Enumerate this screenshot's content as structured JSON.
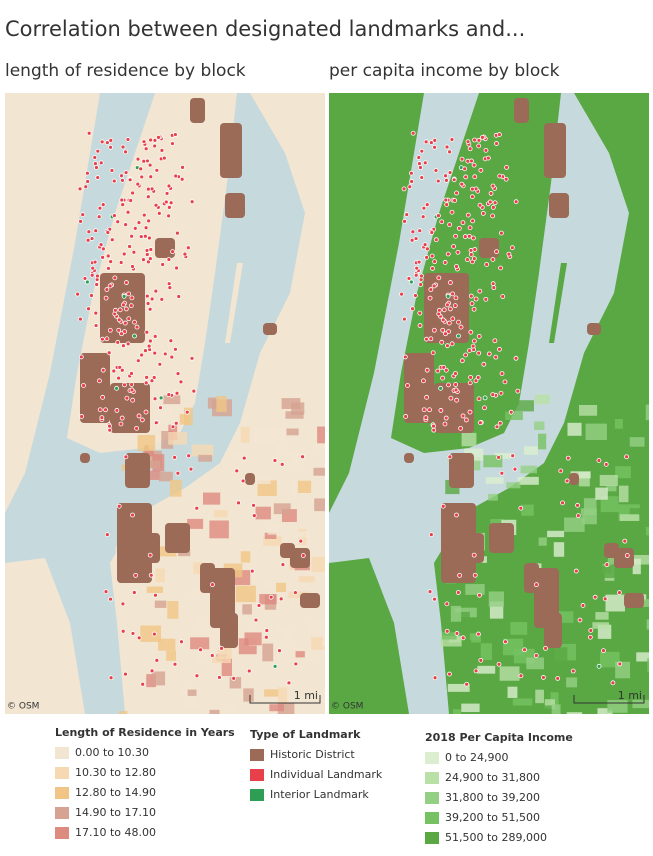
{
  "title": "Correlation between designated landmarks and...",
  "maps": [
    {
      "title": "length of residence by block",
      "attribution": "© OSM",
      "scale": "1 mi"
    },
    {
      "title": "per capita income by block",
      "attribution": "© OSM",
      "scale": "1 mi"
    }
  ],
  "legends": [
    {
      "title": "Length of Residence in Years",
      "items": [
        {
          "label": "0.00 to 10.30",
          "color": "#f2e6d3"
        },
        {
          "label": "10.30 to 12.80",
          "color": "#f6d8b3"
        },
        {
          "label": "12.80 to 14.90",
          "color": "#f0c585"
        },
        {
          "label": "14.90 to 17.10",
          "color": "#d6a291"
        },
        {
          "label": "17.10 to 48.00",
          "color": "#dd8a7f"
        }
      ]
    },
    {
      "title": "Type of Landmark",
      "items": [
        {
          "label": "Historic District",
          "color": "#9b6b57"
        },
        {
          "label": "Individual Landmark",
          "color": "#e8404b"
        },
        {
          "label": "Interior Landmark",
          "color": "#2f9e55"
        }
      ]
    },
    {
      "title": "2018 Per Capita Income",
      "items": [
        {
          "label": "0 to 24,900",
          "color": "#dbeecf"
        },
        {
          "label": "24,900 to 31,800",
          "color": "#b9e0a7"
        },
        {
          "label": "31,800 to 39,200",
          "color": "#94d084"
        },
        {
          "label": "39,200 to 51,500",
          "color": "#76c263"
        },
        {
          "label": "51,500 to 289,000",
          "color": "#59a844"
        }
      ]
    }
  ]
}
